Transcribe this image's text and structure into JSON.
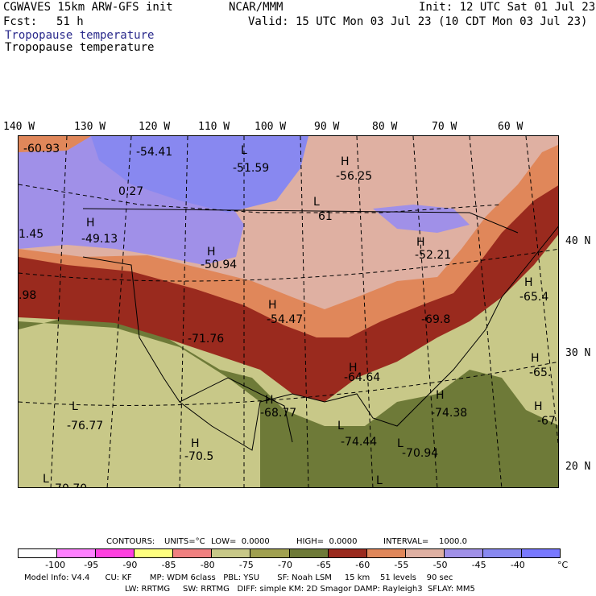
{
  "header": {
    "model": "CGWAVES 15km ARW-GFS init",
    "org": "NCAR/MMM",
    "init": "Init: 12 UTC Sat 01 Jul 23",
    "fcst_label": "Fcst:",
    "fcst_value": "51 h",
    "valid": "Valid: 15 UTC Mon 03 Jul 23 (10 CDT Mon 03 Jul 23)",
    "title_primary": "Tropopause temperature",
    "title_secondary": "Tropopause temperature"
  },
  "longitude_labels": [
    "140 W",
    "130 W",
    "120 W",
    "110 W",
    "100 W",
    "90 W",
    "80 W",
    "70 W",
    "60 W"
  ],
  "latitude_labels": [
    "40 N",
    "30 N",
    "20 N"
  ],
  "map_labels": [
    {
      "text": "-60.93"
    },
    {
      "text": "-54.41"
    },
    {
      "text": "L"
    },
    {
      "text": "-51.59"
    },
    {
      "text": "H"
    },
    {
      "text": "-56.25"
    },
    {
      "text": "0.27"
    },
    {
      "text": "L"
    },
    {
      "text": "61"
    },
    {
      "text": "H"
    },
    {
      "text": "-49.13"
    },
    {
      "text": "1.45"
    },
    {
      "text": "H"
    },
    {
      "text": "-50.94"
    },
    {
      "text": "H"
    },
    {
      "text": "-52.21"
    },
    {
      "text": "40 N"
    },
    {
      "text": "H"
    },
    {
      "text": "-65.4"
    },
    {
      "text": ".98"
    },
    {
      "text": "H"
    },
    {
      "text": "-54.47"
    },
    {
      "text": "-69.8"
    },
    {
      "text": "-71.76"
    },
    {
      "text": "H"
    },
    {
      "text": "-64.64"
    },
    {
      "text": "H"
    },
    {
      "text": "-65."
    },
    {
      "text": "H"
    },
    {
      "text": "-68.77"
    },
    {
      "text": "H"
    },
    {
      "text": "-74.38"
    },
    {
      "text": "H"
    },
    {
      "text": "-67"
    },
    {
      "text": "L"
    },
    {
      "text": "-76.77"
    },
    {
      "text": "L"
    },
    {
      "text": "-74.44"
    },
    {
      "text": "H"
    },
    {
      "text": "-70.5"
    },
    {
      "text": "L"
    },
    {
      "text": "-70.94"
    },
    {
      "text": "L"
    },
    {
      "text": "-70.70"
    },
    {
      "text": "L"
    }
  ],
  "contours_line": {
    "contours": "CONTOURS:",
    "units": "UNITS=°C",
    "low": "LOW=  0.0000",
    "high": "HIGH=  0.0000",
    "interval": "INTERVAL=    1000.0"
  },
  "colorbar": {
    "colors": [
      "#ffffff",
      "#ff80ff",
      "#ff40e0",
      "#ffff80",
      "#f08080",
      "#c8c888",
      "#a0a050",
      "#6e7a38",
      "#9a2a1e",
      "#e0875a",
      "#dfb0a2",
      "#a090e8",
      "#8888f0",
      "#7878ff"
    ],
    "ticks": [
      "-100",
      "-95",
      "-90",
      "-85",
      "-80",
      "-75",
      "-70",
      "-65",
      "-60",
      "-55",
      "-50",
      "-45",
      "-40",
      "°C"
    ]
  },
  "footer": {
    "line1": "Model Info: V4.4      CU: KF       MP: WDM 6class   PBL: YSU       SF: Noah LSM     15 km    51 levels    90 sec",
    "line2": "LW: RRTMG     SW: RRTMG   DIFF: simple KM: 2D Smagor DAMP: Rayleigh3  SFLAY: MM5"
  },
  "legend_colors": {
    "light_salmon": "#dfb0a2",
    "orange": "#e0875a",
    "dark_red": "#9a2a1e",
    "olive": "#6e7a38",
    "light_olive": "#c8c888",
    "lavender": "#a090e8",
    "blue": "#8888f0"
  }
}
